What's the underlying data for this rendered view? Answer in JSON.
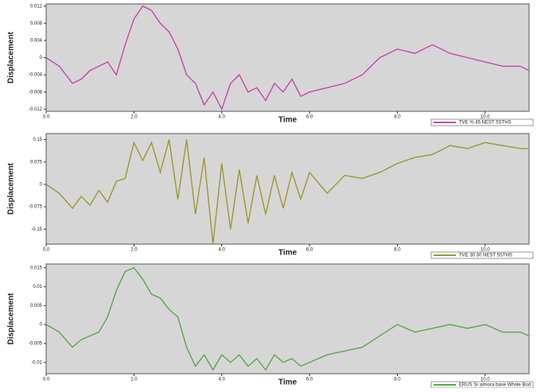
{
  "chart_data": [
    {
      "type": "line",
      "x_label": "Time",
      "y_label": "Displacement",
      "xlim": [
        0,
        11
      ],
      "xticks": [
        {
          "value": 0,
          "label": "0.0"
        },
        {
          "value": 2,
          "label": "2.0"
        },
        {
          "value": 4,
          "label": "4.0"
        },
        {
          "value": 6,
          "label": "6.0"
        },
        {
          "value": 8,
          "label": "8.0"
        },
        {
          "value": 10,
          "label": "10.0"
        }
      ],
      "ylim": [
        -0.0125,
        0.0125
      ],
      "yticks": [
        0.012,
        0.008,
        0.004,
        0,
        -0.004,
        -0.008,
        -0.012
      ],
      "grid": false,
      "x": [
        0,
        0.3,
        0.6,
        0.8,
        1.0,
        1.2,
        1.4,
        1.6,
        1.8,
        2.0,
        2.2,
        2.4,
        2.6,
        2.8,
        3.0,
        3.2,
        3.4,
        3.6,
        3.8,
        4.0,
        4.2,
        4.4,
        4.6,
        4.8,
        5.0,
        5.2,
        5.4,
        5.6,
        5.8,
        6.0,
        6.4,
        6.8,
        7.2,
        7.6,
        8.0,
        8.4,
        8.8,
        9.2,
        9.6,
        10.0,
        10.4,
        10.8,
        11.0
      ],
      "series": [
        {
          "name": "TVE % 45 NEST 5STHS",
          "color": "#cc44aa",
          "values": [
            0,
            -0.002,
            -0.006,
            -0.005,
            -0.003,
            -0.002,
            -0.001,
            -0.004,
            0.003,
            0.009,
            0.012,
            0.011,
            0.008,
            0.006,
            0.002,
            -0.004,
            -0.006,
            -0.011,
            -0.008,
            -0.012,
            -0.006,
            -0.004,
            -0.008,
            -0.007,
            -0.01,
            -0.006,
            -0.008,
            -0.005,
            -0.009,
            -0.008,
            -0.007,
            -0.006,
            -0.004,
            0,
            0.002,
            0.001,
            0.003,
            0.001,
            0,
            -0.001,
            -0.002,
            -0.002,
            -0.003
          ]
        }
      ]
    },
    {
      "type": "line",
      "x_label": "Time",
      "y_label": "Displacement",
      "xlim": [
        0,
        11
      ],
      "xticks": [
        {
          "value": 0,
          "label": "0.0"
        },
        {
          "value": 2,
          "label": "2.0"
        },
        {
          "value": 4,
          "label": "4.0"
        },
        {
          "value": 6,
          "label": "6.0"
        },
        {
          "value": 8,
          "label": "8.0"
        },
        {
          "value": 10,
          "label": "10.0"
        }
      ],
      "ylim": [
        -0.2,
        0.17
      ],
      "yticks": [
        0.15,
        0.075,
        0,
        -0.075,
        -0.15
      ],
      "grid": false,
      "x": [
        0,
        0.3,
        0.6,
        0.8,
        1.0,
        1.2,
        1.4,
        1.6,
        1.8,
        2.0,
        2.2,
        2.4,
        2.6,
        2.8,
        3.0,
        3.2,
        3.4,
        3.6,
        3.8,
        4.0,
        4.2,
        4.4,
        4.6,
        4.8,
        5.0,
        5.2,
        5.4,
        5.6,
        5.8,
        6.0,
        6.4,
        6.8,
        7.2,
        7.6,
        8.0,
        8.4,
        8.8,
        9.2,
        9.6,
        10.0,
        10.4,
        10.8,
        11.0
      ],
      "series": [
        {
          "name": "TVE 30 30 NEST 5STHS",
          "color": "#9a9a30",
          "values": [
            0,
            -0.03,
            -0.08,
            -0.04,
            -0.07,
            -0.02,
            -0.06,
            0.01,
            0.02,
            0.14,
            0.08,
            0.14,
            0.04,
            0.15,
            -0.05,
            0.15,
            -0.1,
            0.09,
            -0.2,
            0.07,
            -0.15,
            0.05,
            -0.13,
            0.03,
            -0.1,
            0.03,
            -0.08,
            0.04,
            -0.05,
            0.04,
            -0.03,
            0.03,
            0.02,
            0.04,
            0.07,
            0.09,
            0.1,
            0.13,
            0.12,
            0.14,
            0.13,
            0.12,
            0.12
          ]
        }
      ]
    },
    {
      "type": "line",
      "x_label": "Time",
      "y_label": "Displacement",
      "xlim": [
        0,
        11
      ],
      "xticks": [
        {
          "value": 0,
          "label": "0.0"
        },
        {
          "value": 2,
          "label": "2.0"
        },
        {
          "value": 4,
          "label": "4.0"
        },
        {
          "value": 6,
          "label": "6.0"
        },
        {
          "value": 8,
          "label": "8.0"
        },
        {
          "value": 10,
          "label": "10.0"
        }
      ],
      "ylim": [
        -0.013,
        0.016
      ],
      "yticks": [
        0.015,
        0.01,
        0.005,
        0,
        -0.005,
        -0.01
      ],
      "grid": false,
      "x": [
        0,
        0.3,
        0.6,
        0.8,
        1.0,
        1.2,
        1.4,
        1.6,
        1.8,
        2.0,
        2.2,
        2.4,
        2.6,
        2.8,
        3.0,
        3.2,
        3.4,
        3.6,
        3.8,
        4.0,
        4.2,
        4.4,
        4.6,
        4.8,
        5.0,
        5.2,
        5.4,
        5.6,
        5.8,
        6.0,
        6.4,
        6.8,
        7.2,
        7.6,
        8.0,
        8.4,
        8.8,
        9.2,
        9.6,
        10.0,
        10.4,
        10.8,
        11.0
      ],
      "series": [
        {
          "name": "ERUS Sr almora base Whole Bod",
          "color": "#55aa44",
          "values": [
            0,
            -0.002,
            -0.006,
            -0.004,
            -0.003,
            -0.002,
            0.002,
            0.009,
            0.014,
            0.015,
            0.012,
            0.008,
            0.007,
            0.004,
            0.002,
            -0.006,
            -0.011,
            -0.008,
            -0.012,
            -0.008,
            -0.01,
            -0.008,
            -0.011,
            -0.009,
            -0.012,
            -0.008,
            -0.01,
            -0.009,
            -0.011,
            -0.01,
            -0.008,
            -0.007,
            -0.006,
            -0.003,
            0,
            -0.002,
            -0.001,
            0,
            -0.001,
            0,
            -0.002,
            -0.002,
            -0.003
          ]
        }
      ]
    }
  ]
}
